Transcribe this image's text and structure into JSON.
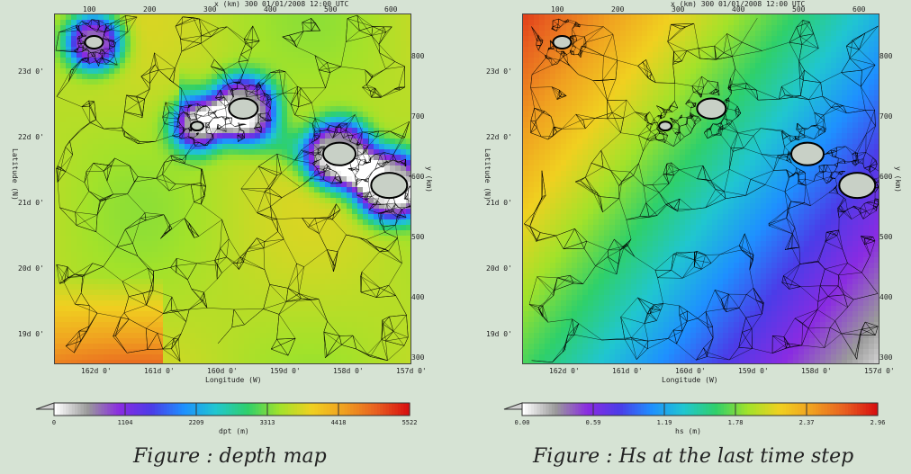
{
  "chart_data": [
    {
      "type": "heatmap",
      "header": "x (km)  300 01/01/2008  12:00 UTC",
      "xlabel": "Longitude (W)",
      "ylabel": "Latitude (N)",
      "y2label": "y (km)",
      "x_ticks": [
        "162d 0'",
        "161d 0'",
        "160d 0'",
        "159d 0'",
        "158d 0'",
        "157d 0'"
      ],
      "y_ticks": [
        "23d 0'",
        "22d 0'",
        "21d 0'",
        "20d 0'",
        "19d 0'"
      ],
      "x2_ticks": [
        "100",
        "200",
        "300",
        "400",
        "500",
        "600"
      ],
      "y2_ticks": [
        "800",
        "700",
        "600",
        "500",
        "400",
        "300"
      ],
      "colorbar": {
        "label": "dpt (m)",
        "ticks": [
          "0",
          "1104",
          "2209",
          "3313",
          "4418",
          "5522"
        ],
        "range": [
          0,
          5522
        ]
      },
      "caption": "Figure : depth map"
    },
    {
      "type": "heatmap",
      "header": "x (km)  300 01/01/2008  12:00 UTC",
      "xlabel": "Longitude (W)",
      "ylabel": "Latitude (N)",
      "y2label": "y (km)",
      "x_ticks": [
        "162d 0'",
        "161d 0'",
        "160d 0'",
        "159d 0'",
        "158d 0'",
        "157d 0'"
      ],
      "y_ticks": [
        "23d 0'",
        "22d 0'",
        "21d 0'",
        "20d 0'",
        "19d 0'"
      ],
      "x2_ticks": [
        "100",
        "200",
        "300",
        "400",
        "500",
        "600"
      ],
      "y2_ticks": [
        "800",
        "700",
        "600",
        "500",
        "400",
        "300"
      ],
      "colorbar": {
        "label": "hs (m)",
        "ticks": [
          "0.00",
          "0.59",
          "1.19",
          "1.78",
          "2.37",
          "2.96"
        ],
        "range": [
          0,
          2.96
        ]
      },
      "caption": "Figure : Hs at the last time step"
    }
  ],
  "colors": {
    "page_background": "#d6e3d4",
    "ocean_deep": "#e89a2a",
    "ocean_shallow_ring": "#8a2be2",
    "land": "#c8d0c6",
    "mesh_lines": "#000000"
  }
}
